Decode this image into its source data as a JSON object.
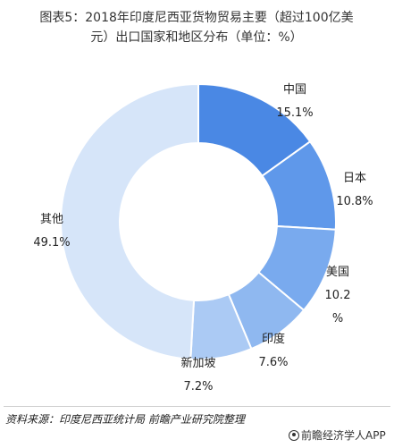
{
  "title": {
    "line1": "图表5：2018年印度尼西亚货物贸易主要（超过100亿美",
    "line2": "元）出口国家和地区分布（单位：%）"
  },
  "chart_data": {
    "type": "pie",
    "donut": true,
    "categories": [
      "中国",
      "日本",
      "美国",
      "印度",
      "新加坡",
      "其他"
    ],
    "values": [
      15.1,
      10.8,
      10.2,
      7.6,
      7.2,
      49.1
    ],
    "value_labels": [
      "15.1%",
      "10.8%",
      "10.2",
      "7.6%",
      "7.2%",
      "49.1%"
    ],
    "value_suffix_lines": [
      "",
      "",
      "%",
      "",
      "",
      ""
    ],
    "colors": [
      "#4a88e4",
      "#5f98ea",
      "#79aaee",
      "#8fb8f0",
      "#abcaf4",
      "#d6e5f9"
    ],
    "legend": "none"
  },
  "footer": {
    "source": "资料来源：印度尼西亚统计局 前瞻产业研究院整理",
    "brand": "前瞻经济学人APP"
  }
}
